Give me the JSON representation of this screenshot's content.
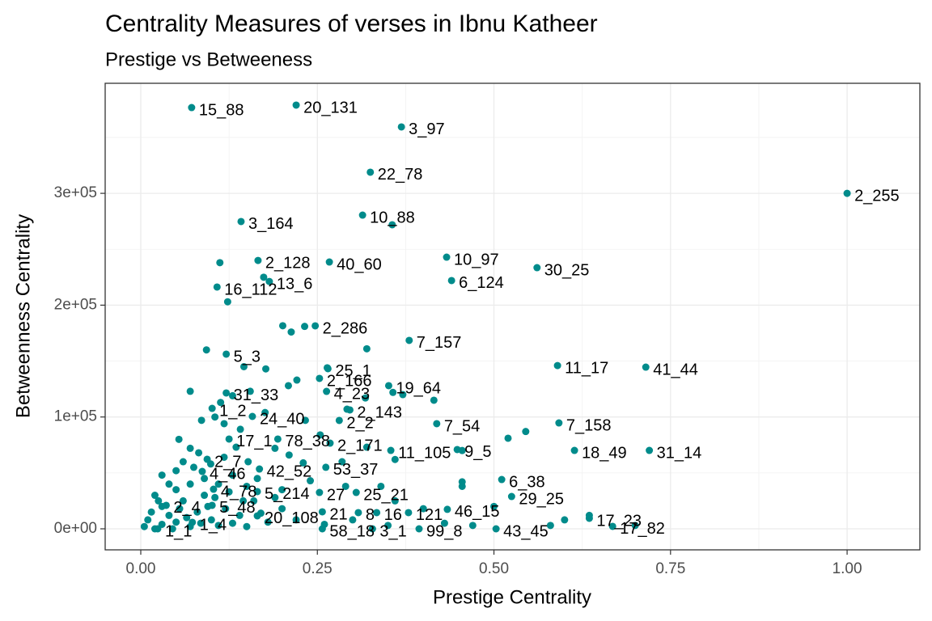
{
  "chart_data": {
    "type": "scatter",
    "title": "Centrality Measures of verses in Ibnu Katheer",
    "subtitle": "Prestige vs Betweeness",
    "x_label": "Prestige Centrality",
    "y_label": "Betweenness Centrality",
    "color": "#008b8b",
    "grid": true,
    "xlim": [
      -0.0504,
      1.103
    ],
    "ylim": [
      -18800,
      398400
    ],
    "xticks": [
      {
        "value": 0,
        "label": "0.00"
      },
      {
        "value": 0.25,
        "label": "0.25"
      },
      {
        "value": 0.5,
        "label": "0.50"
      },
      {
        "value": 0.75,
        "label": "0.75"
      },
      {
        "value": 1,
        "label": "1.00"
      }
    ],
    "yticks": [
      {
        "value": 0,
        "label": "0e+00"
      },
      {
        "value": 100000,
        "label": "1e+05"
      },
      {
        "value": 200000,
        "label": "2e+05"
      },
      {
        "value": 300000,
        "label": "3e+05"
      }
    ],
    "xminor": [
      0.125,
      0.375,
      0.625,
      0.875
    ],
    "yminor": [
      50000,
      150000,
      250000,
      350000
    ],
    "labels": [
      "15_88",
      "20_131",
      "3_97",
      "22_78",
      "2_255",
      "3_164",
      "10_88",
      "2_128",
      "40_60",
      "10_97",
      "30_25",
      "6_124",
      "16_112",
      "13_6",
      "2_286",
      "7_157",
      "5_3",
      "11_17",
      "41_44",
      "25_1",
      "2_166",
      "19_64",
      "31_33",
      "4_23",
      "2_143",
      "24_40",
      "1_2",
      "7_54",
      "7_158",
      "2_2",
      "17_1",
      "78_38",
      "2_171",
      "11_105",
      "9_5",
      "18_49",
      "31_14",
      "2_7",
      "53_37",
      "42_52",
      "4_46",
      "6_38",
      "4_78",
      "5_214",
      "27",
      "25_21",
      "29_25",
      "2_4",
      "5_48",
      "20_108",
      "21",
      "8",
      "16",
      "121",
      "46_15",
      "17_23",
      "17_82",
      "1_1",
      "1_4",
      "58_18",
      "3_1",
      "99_8",
      "43_45",
      null,
      null,
      null,
      null,
      null,
      null,
      null,
      null,
      null,
      null,
      null,
      null,
      null,
      null,
      null,
      null,
      null,
      null,
      null,
      null,
      null,
      null,
      null,
      null,
      null,
      null,
      null,
      null,
      null,
      null,
      null,
      null,
      null,
      null,
      null,
      null,
      null,
      null,
      null,
      null,
      null,
      null,
      null,
      null,
      null,
      null,
      null,
      null,
      null,
      null,
      null,
      null,
      null,
      null,
      null,
      null,
      null,
      null,
      null,
      null,
      null,
      null,
      null,
      null,
      null,
      null,
      null,
      null,
      null,
      null,
      null,
      null,
      null,
      null,
      null,
      null,
      null,
      null,
      null,
      null,
      null,
      null,
      null,
      null,
      null,
      null,
      null,
      null,
      null,
      null,
      null,
      null,
      null,
      null,
      null,
      null,
      null,
      null,
      null,
      null,
      null,
      null,
      null,
      null,
      null,
      null,
      null,
      null,
      null,
      null
    ],
    "x": [
      0.072,
      0.22,
      0.369,
      0.325,
      1,
      0.142,
      0.314,
      0.166,
      0.267,
      0.433,
      0.561,
      0.44,
      0.108,
      0.182,
      0.247,
      0.38,
      0.121,
      0.59,
      0.715,
      0.265,
      0.253,
      0.351,
      0.121,
      0.263,
      0.296,
      0.158,
      0.101,
      0.419,
      0.592,
      0.281,
      0.125,
      0.194,
      0.268,
      0.354,
      0.448,
      0.614,
      0.72,
      0.094,
      0.262,
      0.168,
      0.087,
      0.511,
      0.103,
      0.165,
      0.253,
      0.305,
      0.525,
      0.036,
      0.101,
      0.165,
      0.257,
      0.308,
      0.334,
      0.379,
      0.434,
      0.635,
      0.668,
      0.024,
      0.073,
      0.257,
      0.328,
      0.394,
      0.503,
      0.112,
      0.356,
      0.123,
      0.174,
      0.201,
      0.213,
      0.232,
      0.32,
      0.093,
      0.146,
      0.177,
      0.209,
      0.221,
      0.264,
      0.292,
      0.318,
      0.371,
      0.415,
      0.357,
      0.07,
      0.113,
      0.13,
      0.155,
      0.086,
      0.105,
      0.118,
      0.141,
      0.176,
      0.233,
      0.254,
      0.054,
      0.07,
      0.082,
      0.099,
      0.118,
      0.135,
      0.152,
      0.19,
      0.21,
      0.23,
      0.285,
      0.32,
      0.36,
      0.455,
      0.52,
      0.545,
      0.455,
      0.455,
      0.03,
      0.05,
      0.07,
      0.09,
      0.11,
      0.13,
      0.15,
      0.2,
      0.24,
      0.29,
      0.34,
      0.36,
      0.4,
      0.5,
      0.6,
      0.635,
      0.7,
      0.58,
      0.47,
      0.43,
      0.35,
      0.3,
      0.02,
      0.03,
      0.04,
      0.05,
      0.06,
      0.08,
      0.1,
      0.12,
      0.14,
      0.16,
      0.18,
      0.2,
      0.22,
      0.26,
      0.005,
      0.01,
      0.015,
      0.03,
      0.05,
      0.07,
      0.09,
      0.11,
      0.13,
      0.15,
      0.17,
      0.19,
      0.02,
      0.045,
      0.06,
      0.075,
      0.04,
      0.025,
      0.055,
      0.065,
      0.085,
      0.095,
      0.105,
      0.125,
      0.145,
      0.165
    ],
    "values": [
      376700,
      378900,
      359400,
      318900,
      300000,
      274800,
      280500,
      240000,
      238600,
      242900,
      233500,
      222000,
      216200,
      221200,
      181500,
      168500,
      156200,
      146000,
      144600,
      143200,
      134500,
      128000,
      121500,
      122900,
      106300,
      100500,
      107700,
      94000,
      94700,
      96900,
      80300,
      80300,
      76600,
      70100,
      70900,
      70100,
      70100,
      62200,
      55000,
      53500,
      51300,
      44100,
      35400,
      33300,
      32500,
      32500,
      28900,
      21000,
      21000,
      11600,
      15200,
      14500,
      14500,
      14500,
      17400,
      9400,
      2200,
      0,
      5800,
      0,
      0,
      0,
      0,
      238000,
      271900,
      203000,
      225000,
      181600,
      176000,
      181000,
      161000,
      160000,
      145000,
      143000,
      128000,
      133000,
      144000,
      107000,
      117000,
      120000,
      115000,
      122000,
      123000,
      113000,
      119000,
      123000,
      97000,
      100000,
      94000,
      89000,
      104000,
      97000,
      84000,
      80000,
      72000,
      68000,
      58000,
      64000,
      73000,
      60000,
      72000,
      66000,
      59000,
      60000,
      73000,
      62000,
      70000,
      81000,
      87000,
      42000,
      38000,
      48000,
      52000,
      40000,
      45000,
      40000,
      48000,
      38000,
      35000,
      43000,
      38000,
      38000,
      25000,
      18000,
      20000,
      8000,
      12000,
      3000,
      3000,
      3000,
      5000,
      3000,
      8000,
      30000,
      20000,
      12000,
      35000,
      25000,
      15000,
      8000,
      18000,
      12000,
      25000,
      6000,
      18000,
      8000,
      4000,
      2000,
      8000,
      15000,
      4000,
      6000,
      2000,
      30000,
      3000,
      5000,
      2000,
      14000,
      28000,
      0,
      0,
      60000,
      55000,
      40000,
      25000,
      18000,
      10000,
      5000,
      20000,
      28000,
      33000,
      25000,
      45000
    ]
  }
}
